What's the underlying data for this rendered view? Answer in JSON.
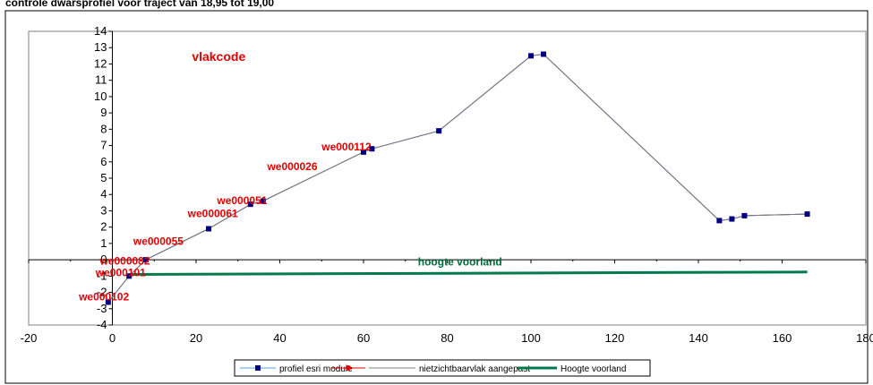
{
  "chart_data": {
    "type": "line",
    "title": "controle dwarsprofiel voor traject van 18,95 tot 19,00",
    "xlabel": "",
    "ylabel": "",
    "xlim": [
      -20,
      180
    ],
    "ylim": [
      -4,
      14
    ],
    "x_ticks": [
      "-20",
      "0",
      "20",
      "40",
      "60",
      "80",
      "100",
      "120",
      "140",
      "160",
      "180"
    ],
    "y_ticks": [
      "-4",
      "-3",
      "-2",
      "-1",
      "0",
      "1",
      "2",
      "3",
      "4",
      "5",
      "6",
      "7",
      "8",
      "9",
      "10",
      "11",
      "12",
      "13",
      "14"
    ],
    "grid": false,
    "legend_position": "bottom",
    "series": [
      {
        "name": "profiel esri module",
        "color": "#000080",
        "marker": "square",
        "points": [
          [
            -1,
            -2.6
          ],
          [
            4,
            -1
          ],
          [
            8,
            0
          ],
          [
            23,
            1.9
          ],
          [
            33,
            3.4
          ],
          [
            36,
            3.6
          ],
          [
            60,
            6.6
          ],
          [
            62,
            6.8
          ],
          [
            78,
            7.9
          ],
          [
            100,
            12.5
          ],
          [
            103,
            12.6
          ],
          [
            145,
            2.4
          ],
          [
            148,
            2.5
          ],
          [
            151,
            2.7
          ],
          [
            166,
            2.8
          ]
        ]
      },
      {
        "name": "",
        "color": "#e00000",
        "marker": "circle",
        "points": []
      },
      {
        "name": "nietzichtbaarvlak aangepast",
        "color": "#808080",
        "marker": "none",
        "points": [
          [
            -1,
            -2.6
          ],
          [
            4,
            -1
          ],
          [
            8,
            0
          ],
          [
            23,
            1.9
          ],
          [
            33,
            3.4
          ],
          [
            36,
            3.6
          ],
          [
            60,
            6.6
          ],
          [
            62,
            6.8
          ],
          [
            78,
            7.9
          ],
          [
            100,
            12.5
          ],
          [
            103,
            12.6
          ],
          [
            145,
            2.4
          ],
          [
            148,
            2.5
          ],
          [
            151,
            2.7
          ],
          [
            166,
            2.8
          ]
        ]
      },
      {
        "name": "Hoogte voorland",
        "color": "#007a4d",
        "marker": "none",
        "points": [
          [
            4,
            -0.9
          ],
          [
            166,
            -0.75
          ]
        ]
      }
    ],
    "annotations": [
      {
        "text": "vlakcode",
        "x": 19,
        "y": 12.2,
        "color": "#e00000"
      },
      {
        "text": "we000112",
        "x": 50,
        "y": 6.7,
        "color": "#e00000"
      },
      {
        "text": "we000026",
        "x": 37,
        "y": 5.5,
        "color": "#e00000"
      },
      {
        "text": "we000051",
        "x": 25,
        "y": 3.4,
        "color": "#e00000"
      },
      {
        "text": "we000061",
        "x": 18,
        "y": 2.6,
        "color": "#e00000"
      },
      {
        "text": "we000055",
        "x": 5,
        "y": 0.9,
        "color": "#e00000"
      },
      {
        "text": "we000082",
        "x": -3,
        "y": -0.3,
        "color": "#e00000"
      },
      {
        "text": "we000101",
        "x": -4,
        "y": -1.0,
        "color": "#e00000"
      },
      {
        "text": "we000102",
        "x": -8,
        "y": -2.5,
        "color": "#e00000"
      },
      {
        "text": "hoogte voorland",
        "x": 73,
        "y": -0.35,
        "color": "#006a3a"
      }
    ]
  }
}
